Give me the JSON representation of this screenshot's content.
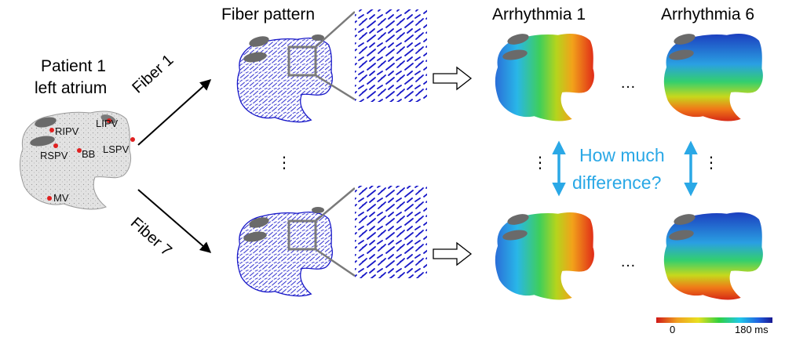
{
  "patient": {
    "line1": "Patient 1",
    "line2": "left atrium"
  },
  "landmarks": {
    "ripv": "RIPV",
    "lipv": "LIPV",
    "rspv": "RSPV",
    "bb": "BB",
    "lspv": "LSPV",
    "mv": "MV"
  },
  "arrows": {
    "fiber_top": "Fiber 1",
    "fiber_bottom": "Fiber 7"
  },
  "headers": {
    "fiber_pattern": "Fiber pattern",
    "arrhythmia_first": "Arrhythmia 1",
    "arrhythmia_last": "Arrhythmia 6"
  },
  "ellipses": {
    "horizontal": "…",
    "vertical": "⋮"
  },
  "question": {
    "line1": "How much",
    "line2": "difference?"
  },
  "colorbar": {
    "min_label": "0",
    "max_label": "180 ms"
  },
  "colors": {
    "fiber": "#1818c8",
    "question": "#2aa8e6"
  }
}
